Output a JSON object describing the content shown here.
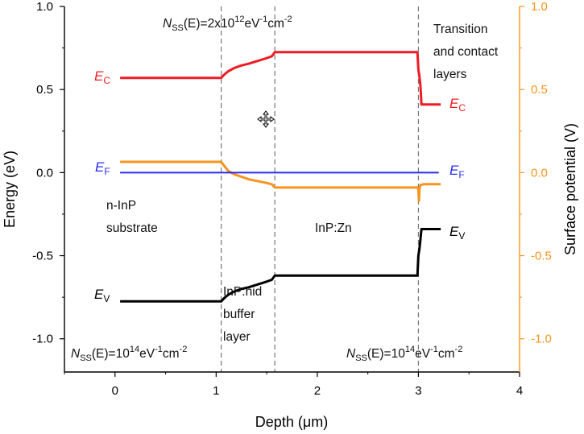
{
  "chart_data": {
    "type": "line",
    "xlabel": "Depth (μm)",
    "ylabel_left": "Energy (eV)",
    "ylabel_right": "Surface potential (V)",
    "xlim": [
      -0.5,
      4.0
    ],
    "ylim_left": [
      -1.2,
      1.0
    ],
    "ylim_right": [
      -1.2,
      1.0
    ],
    "x_ticks": [
      0,
      1,
      2,
      3,
      4
    ],
    "x_tick_labels": [
      "0",
      "1",
      "2",
      "3",
      "4"
    ],
    "y_ticks": [
      1.0,
      0.5,
      0.0,
      -0.5,
      -1.0
    ],
    "y_tick_labels": [
      "1.0",
      "0.5",
      "0.0",
      "-0.5",
      "-1.0"
    ],
    "vlines": [
      1.05,
      1.58,
      3.0
    ],
    "colors": {
      "ec": "#ee1c24",
      "ef": "#2b2bf0",
      "ev": "#000000",
      "potential": "#f7941d",
      "right_axis": "#f7941d",
      "dashed": "#777777"
    },
    "series": [
      {
        "name": "EC",
        "axis": "left",
        "x": [
          0.05,
          1.05,
          1.08,
          1.12,
          1.18,
          1.25,
          1.32,
          1.4,
          1.48,
          1.55,
          1.58,
          2.2,
          2.99,
          3.0,
          3.01,
          3.02,
          3.03,
          3.05,
          3.22
        ],
        "y": [
          0.57,
          0.57,
          0.59,
          0.61,
          0.63,
          0.645,
          0.655,
          0.67,
          0.685,
          0.7,
          0.725,
          0.725,
          0.725,
          0.62,
          0.58,
          0.52,
          0.41,
          0.41,
          0.41
        ]
      },
      {
        "name": "EF",
        "axis": "left",
        "x": [
          0.05,
          3.2
        ],
        "y": [
          0.0,
          0.0
        ]
      },
      {
        "name": "EV",
        "axis": "left",
        "x": [
          0.05,
          1.05,
          1.08,
          1.12,
          1.18,
          1.25,
          1.32,
          1.4,
          1.48,
          1.55,
          1.58,
          2.2,
          2.99,
          3.0,
          3.01,
          3.02,
          3.03,
          3.05,
          3.22
        ],
        "y": [
          -0.775,
          -0.775,
          -0.755,
          -0.735,
          -0.715,
          -0.7,
          -0.69,
          -0.675,
          -0.66,
          -0.645,
          -0.62,
          -0.62,
          -0.62,
          -0.5,
          -0.46,
          -0.4,
          -0.34,
          -0.34,
          -0.34
        ]
      },
      {
        "name": "Surface potential",
        "axis": "right",
        "x": [
          0.05,
          1.05,
          1.08,
          1.12,
          1.18,
          1.25,
          1.32,
          1.4,
          1.48,
          1.55,
          1.58,
          2.99,
          3.0,
          3.005,
          3.01,
          3.02,
          3.05,
          3.22
        ],
        "y": [
          0.065,
          0.065,
          0.04,
          0.01,
          -0.01,
          -0.025,
          -0.04,
          -0.05,
          -0.06,
          -0.07,
          -0.09,
          -0.09,
          -0.1,
          -0.17,
          -0.1,
          -0.075,
          -0.07,
          -0.07
        ]
      }
    ],
    "annotations": {
      "nss_top_prefix": "N",
      "nss_top_sub": "SS",
      "nss_top_mid": "(E)=2x10",
      "nss_top_exp": "12",
      "nss_top_unit": "eV",
      "nss_top_unit_exp": "-1",
      "nss_top_cm": "cm",
      "nss_top_cm_exp": "-2",
      "nss_left_prefix": "N",
      "nss_left_sub": "SS",
      "nss_left_mid": "(E)=10",
      "nss_left_exp": "14",
      "nss_left_unit": "eV",
      "nss_left_unit_exp": "-1",
      "nss_left_cm": "cm",
      "nss_left_cm_exp": "-2",
      "nss_right_prefix": "N",
      "nss_right_sub": "SS",
      "nss_right_mid": "(E)=10",
      "nss_right_exp": "14",
      "nss_right_unit": "eV",
      "nss_right_unit_exp": "-1",
      "nss_right_cm": "cm",
      "nss_right_cm_exp": "-2",
      "transition_line1": "Transition",
      "transition_line2": "and contact",
      "transition_line3": "layers",
      "substrate_line1": "n-InP",
      "substrate_line2": "substrate",
      "buffer_line1": "InP:nid",
      "buffer_line2": "buffer",
      "buffer_line3": "layer",
      "inpzn": "InP:Zn",
      "ec_main": "E",
      "ec_sub": "C",
      "ef_main": "E",
      "ef_sub": "F",
      "ev_main": "E",
      "ev_sub": "V"
    }
  }
}
